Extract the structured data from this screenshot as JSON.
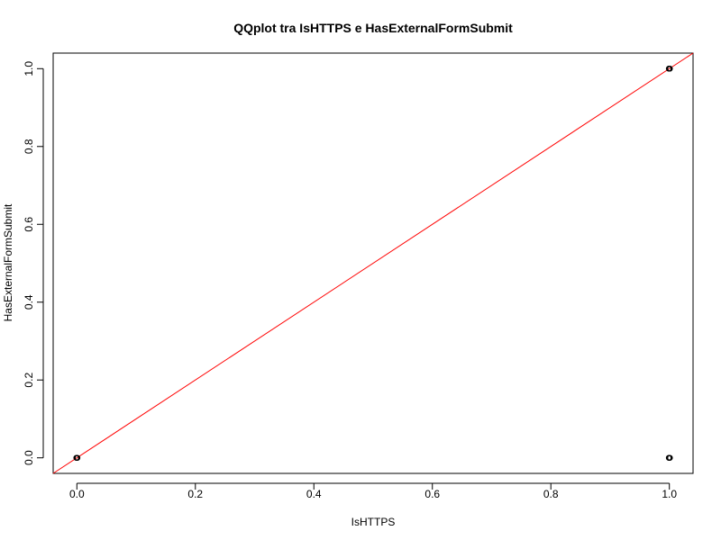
{
  "chart_data": {
    "type": "scatter",
    "title": "QQplot tra IsHTTPS e HasExternalFormSubmit",
    "xlabel": "IsHTTPS",
    "ylabel": "HasExternalFormSubmit",
    "xlim": [
      -0.04,
      1.04
    ],
    "ylim": [
      -0.04,
      1.04
    ],
    "xticks": [
      "0.0",
      "0.2",
      "0.4",
      "0.6",
      "0.8",
      "1.0"
    ],
    "yticks": [
      "0.0",
      "0.2",
      "0.4",
      "0.6",
      "0.8",
      "1.0"
    ],
    "points": [
      {
        "x": 0,
        "y": 0
      },
      {
        "x": 1,
        "y": 1
      },
      {
        "x": 1,
        "y": 0
      }
    ],
    "reference_line": {
      "intercept": 0,
      "slope": 1,
      "color": "#ff0000"
    },
    "point_color": "#000000",
    "grid": false,
    "legend": "none"
  }
}
